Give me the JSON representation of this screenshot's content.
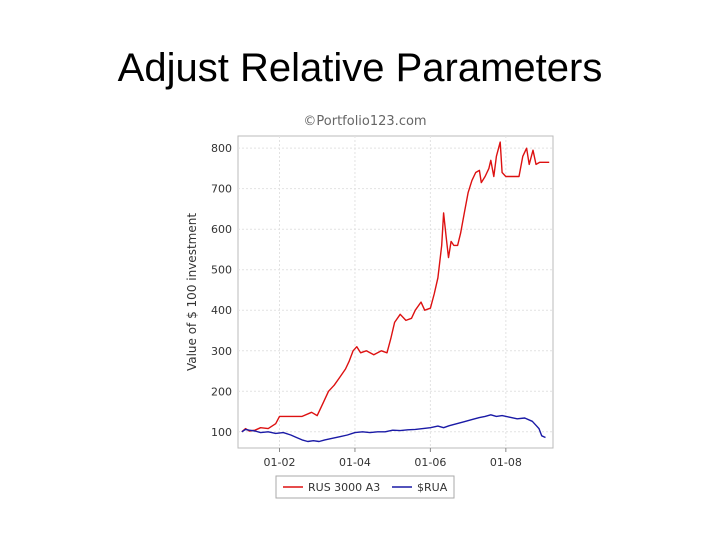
{
  "slide": {
    "title": "Adjust Relative Parameters"
  },
  "chart_data": {
    "type": "line",
    "credit": "©Portfolio123.com",
    "ylabel": "Value of $ 100 investment",
    "xlabel": "",
    "ylim": [
      60,
      830
    ],
    "xlim": [
      2000.9,
      2009.25
    ],
    "yticks": [
      100,
      200,
      300,
      400,
      500,
      600,
      700,
      800
    ],
    "xticks": [
      {
        "value": 2002,
        "label": "01-02"
      },
      {
        "value": 2004,
        "label": "01-04"
      },
      {
        "value": 2006,
        "label": "01-06"
      },
      {
        "value": 2008,
        "label": "01-08"
      }
    ],
    "grid": true,
    "legend_position": "bottom",
    "series": [
      {
        "name": "RUS 3000 A3",
        "color": "#dd1111",
        "points": [
          [
            2001.0,
            100
          ],
          [
            2001.1,
            108
          ],
          [
            2001.2,
            102
          ],
          [
            2001.35,
            104
          ],
          [
            2001.5,
            110
          ],
          [
            2001.7,
            108
          ],
          [
            2001.9,
            120
          ],
          [
            2002.0,
            138
          ],
          [
            2002.3,
            138
          ],
          [
            2002.6,
            138
          ],
          [
            2002.85,
            148
          ],
          [
            2003.0,
            140
          ],
          [
            2003.15,
            170
          ],
          [
            2003.3,
            200
          ],
          [
            2003.45,
            215
          ],
          [
            2003.6,
            235
          ],
          [
            2003.75,
            255
          ],
          [
            2003.85,
            275
          ],
          [
            2003.95,
            300
          ],
          [
            2004.05,
            310
          ],
          [
            2004.15,
            295
          ],
          [
            2004.3,
            300
          ],
          [
            2004.5,
            290
          ],
          [
            2004.7,
            300
          ],
          [
            2004.85,
            295
          ],
          [
            2004.95,
            330
          ],
          [
            2005.05,
            370
          ],
          [
            2005.2,
            390
          ],
          [
            2005.35,
            375
          ],
          [
            2005.5,
            380
          ],
          [
            2005.6,
            400
          ],
          [
            2005.75,
            420
          ],
          [
            2005.85,
            400
          ],
          [
            2006.0,
            405
          ],
          [
            2006.1,
            440
          ],
          [
            2006.2,
            480
          ],
          [
            2006.3,
            560
          ],
          [
            2006.35,
            640
          ],
          [
            2006.42,
            580
          ],
          [
            2006.48,
            530
          ],
          [
            2006.55,
            570
          ],
          [
            2006.62,
            560
          ],
          [
            2006.72,
            560
          ],
          [
            2006.8,
            590
          ],
          [
            2006.9,
            640
          ],
          [
            2007.0,
            690
          ],
          [
            2007.1,
            720
          ],
          [
            2007.2,
            740
          ],
          [
            2007.3,
            745
          ],
          [
            2007.35,
            715
          ],
          [
            2007.45,
            730
          ],
          [
            2007.55,
            750
          ],
          [
            2007.6,
            770
          ],
          [
            2007.68,
            730
          ],
          [
            2007.75,
            780
          ],
          [
            2007.85,
            815
          ],
          [
            2007.9,
            740
          ],
          [
            2008.0,
            730
          ],
          [
            2008.15,
            730
          ],
          [
            2008.35,
            730
          ],
          [
            2008.45,
            780
          ],
          [
            2008.55,
            800
          ],
          [
            2008.62,
            760
          ],
          [
            2008.72,
            795
          ],
          [
            2008.8,
            760
          ],
          [
            2008.9,
            765
          ],
          [
            2009.15,
            765
          ]
        ]
      },
      {
        "name": "$RUA",
        "color": "#1a1aa6",
        "points": [
          [
            2001.0,
            100
          ],
          [
            2001.1,
            106
          ],
          [
            2001.2,
            104
          ],
          [
            2001.35,
            102
          ],
          [
            2001.5,
            98
          ],
          [
            2001.7,
            100
          ],
          [
            2001.9,
            96
          ],
          [
            2002.1,
            98
          ],
          [
            2002.3,
            92
          ],
          [
            2002.45,
            86
          ],
          [
            2002.6,
            80
          ],
          [
            2002.75,
            76
          ],
          [
            2002.9,
            78
          ],
          [
            2003.05,
            76
          ],
          [
            2003.2,
            80
          ],
          [
            2003.4,
            84
          ],
          [
            2003.6,
            88
          ],
          [
            2003.8,
            92
          ],
          [
            2004.0,
            98
          ],
          [
            2004.2,
            100
          ],
          [
            2004.4,
            98
          ],
          [
            2004.6,
            100
          ],
          [
            2004.8,
            100
          ],
          [
            2005.0,
            104
          ],
          [
            2005.2,
            103
          ],
          [
            2005.4,
            105
          ],
          [
            2005.6,
            106
          ],
          [
            2005.8,
            108
          ],
          [
            2006.0,
            110
          ],
          [
            2006.2,
            114
          ],
          [
            2006.35,
            110
          ],
          [
            2006.5,
            115
          ],
          [
            2006.7,
            120
          ],
          [
            2006.9,
            125
          ],
          [
            2007.1,
            130
          ],
          [
            2007.3,
            135
          ],
          [
            2007.45,
            138
          ],
          [
            2007.6,
            142
          ],
          [
            2007.75,
            138
          ],
          [
            2007.9,
            140
          ],
          [
            2008.1,
            136
          ],
          [
            2008.3,
            132
          ],
          [
            2008.5,
            134
          ],
          [
            2008.7,
            126
          ],
          [
            2008.8,
            116
          ],
          [
            2008.88,
            108
          ],
          [
            2008.95,
            90
          ],
          [
            2009.05,
            86
          ]
        ]
      }
    ]
  }
}
